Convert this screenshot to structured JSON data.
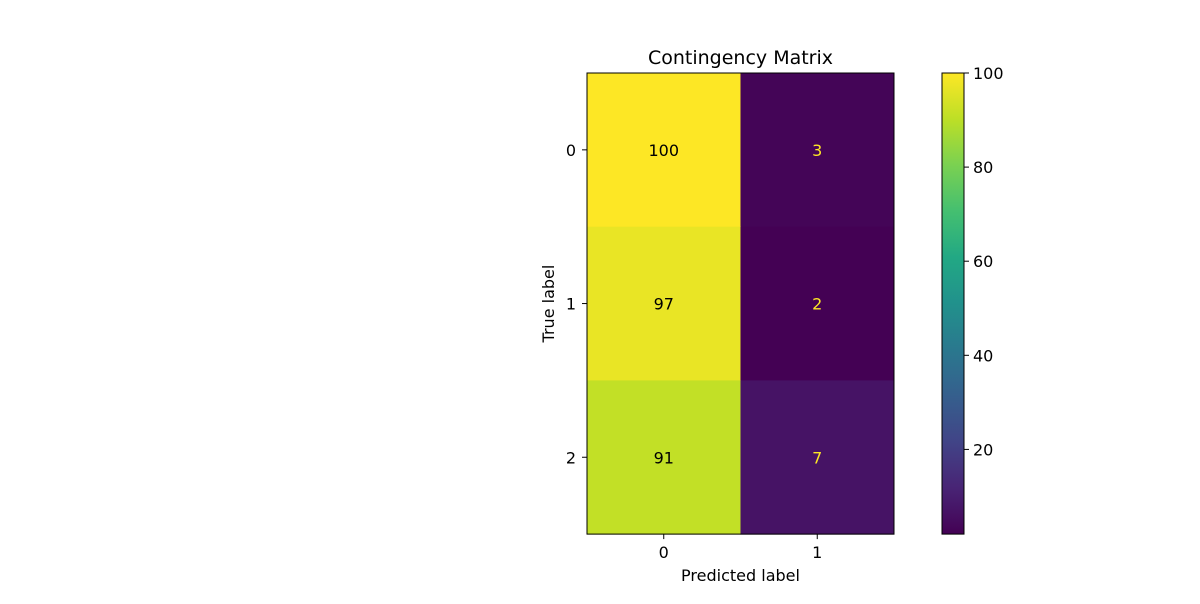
{
  "chart_data": {
    "type": "heatmap",
    "title": "Contingency Matrix",
    "xlabel": "Predicted label",
    "ylabel": "True label",
    "x_categories": [
      "0",
      "1"
    ],
    "y_categories": [
      "0",
      "1",
      "2"
    ],
    "values": [
      [
        100,
        3
      ],
      [
        97,
        2
      ],
      [
        91,
        7
      ]
    ],
    "colormap": "viridis",
    "colorbar": {
      "range": [
        2,
        100
      ],
      "ticks": [
        20,
        40,
        60,
        80,
        100
      ]
    },
    "text_color_light": "#fde725",
    "text_color_dark": "#000000"
  }
}
